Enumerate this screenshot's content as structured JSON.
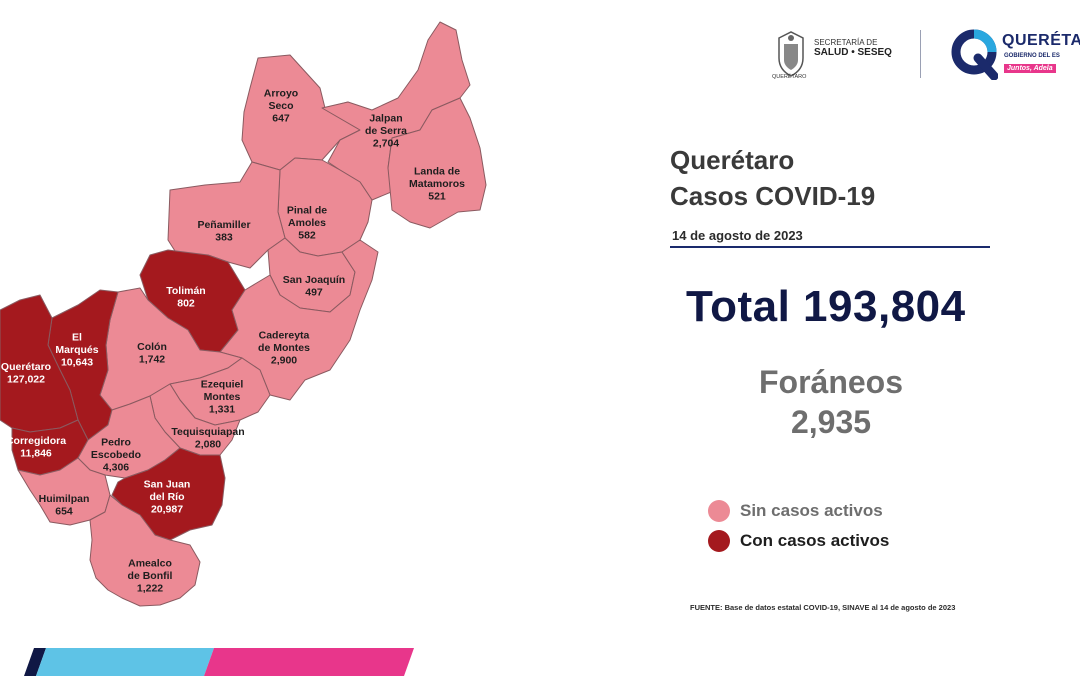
{
  "header": {
    "secretaria_line1": "SECRETARÍA DE",
    "secretaria_line2": "SALUD • SESEQ",
    "crest_caption": "QUERÉTARO",
    "brand_name": "QUERÉTA",
    "brand_sub": "GOBIERNO DEL ES",
    "brand_tag": "Juntos, Adela"
  },
  "title": {
    "line1": "Querétaro",
    "line2": "Casos COVID-19",
    "date": "14 de agosto de 2023"
  },
  "total": "Total 193,804",
  "foraneos": {
    "label": "Foráneos",
    "value": "2,935"
  },
  "legend": {
    "no_active": {
      "label": "Sin casos activos",
      "color": "#ec8a95"
    },
    "active": {
      "label": "Con casos activos",
      "color": "#a4191e"
    }
  },
  "source": "FUENTE: Base de datos estatal COVID-19, SINAVE  al 14 de agosto de 2023",
  "colors": {
    "no_active": "#ec8a95",
    "active": "#a4191e",
    "border": "#8a5a60",
    "navy": "#101845"
  },
  "municipalities": [
    {
      "id": "arroyo-seco",
      "lines": [
        "Arroyo",
        "Seco",
        "647"
      ],
      "status": "no_active"
    },
    {
      "id": "jalpan-de-serra",
      "lines": [
        "Jalpan",
        "de Serra",
        "2,704"
      ],
      "status": "no_active"
    },
    {
      "id": "landa-de-matamoros",
      "lines": [
        "Landa de",
        "Matamoros",
        "521"
      ],
      "status": "no_active"
    },
    {
      "id": "pinal-de-amoles",
      "lines": [
        "Pinal de",
        "Amoles",
        "582"
      ],
      "status": "no_active"
    },
    {
      "id": "penamiller",
      "lines": [
        "Peñamiller",
        "383"
      ],
      "status": "no_active"
    },
    {
      "id": "san-joaquin",
      "lines": [
        "San Joaquín",
        "497"
      ],
      "status": "no_active"
    },
    {
      "id": "toliman",
      "lines": [
        "Tolimán",
        "802"
      ],
      "status": "active"
    },
    {
      "id": "cadereyta-de-montes",
      "lines": [
        "Cadereyta",
        "de Montes",
        "2,900"
      ],
      "status": "no_active"
    },
    {
      "id": "colon",
      "lines": [
        "Colón",
        "1,742"
      ],
      "status": "no_active"
    },
    {
      "id": "el-marques",
      "lines": [
        "El",
        "Marqués",
        "10,643"
      ],
      "status": "active"
    },
    {
      "id": "queretaro",
      "lines": [
        "Querétaro",
        "127,022"
      ],
      "status": "active"
    },
    {
      "id": "ezequiel-montes",
      "lines": [
        "Ezequiel",
        "Montes",
        "1,331"
      ],
      "status": "no_active"
    },
    {
      "id": "tequisquiapan",
      "lines": [
        "Tequisquiapan",
        "2,080"
      ],
      "status": "no_active"
    },
    {
      "id": "corregidora",
      "lines": [
        "Corregidora",
        "11,846"
      ],
      "status": "active"
    },
    {
      "id": "pedro-escobedo",
      "lines": [
        "Pedro",
        "Escobedo",
        "4,306"
      ],
      "status": "no_active"
    },
    {
      "id": "huimilpan",
      "lines": [
        "Huimilpan",
        "654"
      ],
      "status": "no_active"
    },
    {
      "id": "san-juan-del-rio",
      "lines": [
        "San Juan",
        "del Río",
        "20,987"
      ],
      "status": "active"
    },
    {
      "id": "amealco-de-bonfil",
      "lines": [
        "Amealco",
        "de Bonfil",
        "1,222"
      ],
      "status": "no_active"
    }
  ]
}
